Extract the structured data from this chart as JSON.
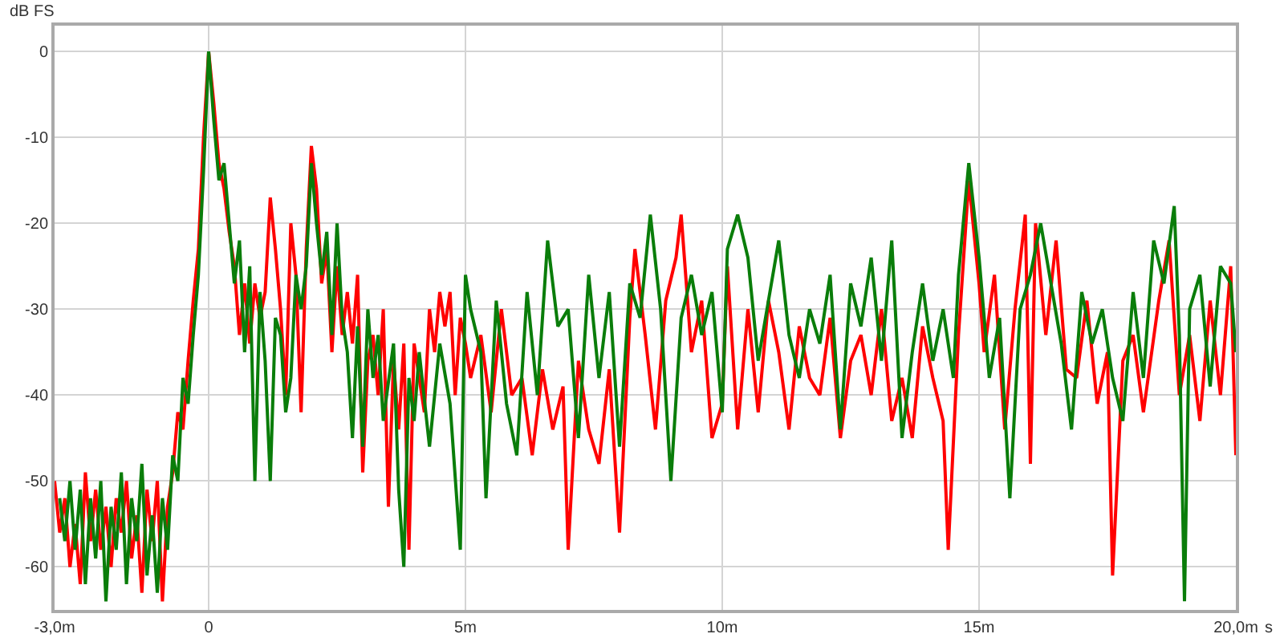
{
  "chart_data": {
    "type": "line",
    "xlabel": "s",
    "ylabel": "dB FS",
    "xlim": [
      -3,
      20
    ],
    "ylim": [
      -65,
      3
    ],
    "xticks": [
      {
        "value": -3,
        "label": "-3,0m"
      },
      0,
      {
        "value": 5,
        "label": "5m"
      },
      {
        "value": 10,
        "label": "10m"
      },
      {
        "value": 15,
        "label": "15m"
      },
      {
        "value": 20,
        "label": "20,0m"
      }
    ],
    "yticks": [
      -60,
      -50,
      -40,
      -30,
      -20,
      -10,
      0
    ],
    "grid": true,
    "marker": "none",
    "line_style": "solid",
    "series": [
      {
        "color": "#ff0000",
        "x": [
          -3.0,
          -2.9,
          -2.8,
          -2.7,
          -2.6,
          -2.5,
          -2.4,
          -2.3,
          -2.2,
          -2.1,
          -2.0,
          -1.9,
          -1.8,
          -1.7,
          -1.6,
          -1.5,
          -1.4,
          -1.3,
          -1.2,
          -1.1,
          -1.0,
          -0.9,
          -0.8,
          -0.7,
          -0.6,
          -0.5,
          -0.4,
          -0.3,
          -0.2,
          -0.1,
          0.0,
          0.1,
          0.2,
          0.3,
          0.4,
          0.5,
          0.6,
          0.7,
          0.8,
          0.9,
          1.0,
          1.1,
          1.2,
          1.3,
          1.4,
          1.5,
          1.6,
          1.7,
          1.8,
          1.9,
          2.0,
          2.1,
          2.2,
          2.3,
          2.4,
          2.5,
          2.6,
          2.7,
          2.8,
          2.9,
          3.0,
          3.1,
          3.2,
          3.3,
          3.4,
          3.5,
          3.6,
          3.7,
          3.8,
          3.9,
          4.0,
          4.2,
          4.3,
          4.4,
          4.5,
          4.6,
          4.7,
          4.8,
          4.9,
          5.0,
          5.1,
          5.3,
          5.5,
          5.7,
          5.9,
          6.1,
          6.3,
          6.5,
          6.7,
          6.9,
          7.0,
          7.2,
          7.4,
          7.6,
          7.8,
          8.0,
          8.2,
          8.3,
          8.5,
          8.7,
          8.9,
          9.1,
          9.2,
          9.4,
          9.6,
          9.8,
          10.0,
          10.1,
          10.3,
          10.5,
          10.7,
          10.9,
          11.1,
          11.3,
          11.5,
          11.7,
          11.9,
          12.1,
          12.3,
          12.5,
          12.7,
          12.9,
          13.1,
          13.3,
          13.5,
          13.7,
          13.9,
          14.1,
          14.3,
          14.4,
          14.6,
          14.8,
          15.0,
          15.1,
          15.3,
          15.5,
          15.7,
          15.9,
          16.0,
          16.1,
          16.3,
          16.5,
          16.7,
          16.9,
          17.1,
          17.3,
          17.5,
          17.6,
          17.8,
          18.0,
          18.2,
          18.5,
          18.7,
          18.9,
          19.1,
          19.3,
          19.5,
          19.7,
          19.9,
          20.0
        ],
        "values": [
          -50,
          -56,
          -52,
          -60,
          -55,
          -62,
          -49,
          -57,
          -51,
          -58,
          -53,
          -60,
          -52,
          -56,
          -50,
          -59,
          -54,
          -63,
          -51,
          -57,
          -50,
          -64,
          -53,
          -49,
          -42,
          -44,
          -36,
          -29,
          -23,
          -10,
          0,
          -6,
          -13,
          -16,
          -21,
          -25,
          -33,
          -27,
          -34,
          -27,
          -31,
          -28,
          -17,
          -23,
          -30,
          -40,
          -20,
          -26,
          -42,
          -23,
          -11,
          -16,
          -27,
          -23,
          -35,
          -25,
          -33,
          -28,
          -34,
          -26,
          -49,
          -36,
          -33,
          -40,
          -30,
          -53,
          -36,
          -44,
          -34,
          -58,
          -34,
          -42,
          -30,
          -35,
          -28,
          -32,
          -28,
          -40,
          -31,
          -34,
          -38,
          -33,
          -42,
          -30,
          -40,
          -38,
          -47,
          -37,
          -44,
          -39,
          -58,
          -36,
          -44,
          -48,
          -37,
          -56,
          -31,
          -23,
          -33,
          -44,
          -29,
          -24,
          -19,
          -35,
          -29,
          -45,
          -41,
          -25,
          -44,
          -30,
          -42,
          -29,
          -35,
          -44,
          -32,
          -38,
          -40,
          -31,
          -45,
          -36,
          -33,
          -40,
          -30,
          -43,
          -38,
          -45,
          -32,
          -38,
          -43,
          -58,
          -33,
          -15,
          -27,
          -35,
          -26,
          -44,
          -30,
          -19,
          -48,
          -20,
          -33,
          -22,
          -37,
          -38,
          -29,
          -41,
          -35,
          -61,
          -36,
          -33,
          -42,
          -29,
          -22,
          -40,
          -33,
          -43,
          -29,
          -40,
          -25,
          -47
        ]
      },
      {
        "color": "#0a7d0a",
        "x": [
          -2.9,
          -2.8,
          -2.7,
          -2.6,
          -2.5,
          -2.4,
          -2.3,
          -2.2,
          -2.1,
          -2.0,
          -1.9,
          -1.8,
          -1.7,
          -1.6,
          -1.5,
          -1.4,
          -1.3,
          -1.2,
          -1.1,
          -1.0,
          -0.9,
          -0.8,
          -0.7,
          -0.6,
          -0.5,
          -0.4,
          -0.3,
          -0.2,
          -0.1,
          0.0,
          0.1,
          0.2,
          0.3,
          0.4,
          0.5,
          0.6,
          0.7,
          0.8,
          0.9,
          1.0,
          1.1,
          1.2,
          1.3,
          1.4,
          1.5,
          1.6,
          1.7,
          1.8,
          1.9,
          2.0,
          2.1,
          2.2,
          2.3,
          2.4,
          2.5,
          2.6,
          2.7,
          2.8,
          2.9,
          3.0,
          3.1,
          3.2,
          3.3,
          3.4,
          3.6,
          3.7,
          3.8,
          3.9,
          4.0,
          4.1,
          4.3,
          4.5,
          4.7,
          4.9,
          5.0,
          5.1,
          5.3,
          5.4,
          5.6,
          5.8,
          6.0,
          6.2,
          6.4,
          6.6,
          6.8,
          7.0,
          7.2,
          7.4,
          7.6,
          7.8,
          8.0,
          8.2,
          8.4,
          8.6,
          8.8,
          9.0,
          9.2,
          9.4,
          9.6,
          9.8,
          10.0,
          10.1,
          10.3,
          10.5,
          10.7,
          10.9,
          11.1,
          11.3,
          11.5,
          11.7,
          11.9,
          12.1,
          12.3,
          12.5,
          12.7,
          12.9,
          13.1,
          13.3,
          13.5,
          13.7,
          13.9,
          14.1,
          14.3,
          14.5,
          14.6,
          14.8,
          15.0,
          15.2,
          15.4,
          15.6,
          15.8,
          16.0,
          16.2,
          16.4,
          16.6,
          16.8,
          17.0,
          17.2,
          17.4,
          17.6,
          17.8,
          18.0,
          18.2,
          18.4,
          18.6,
          18.8,
          18.9,
          19.0,
          19.1,
          19.3,
          19.5,
          19.7,
          19.9,
          20.0
        ],
        "values": [
          -52,
          -57,
          -50,
          -58,
          -51,
          -62,
          -52,
          -59,
          -50,
          -64,
          -53,
          -58,
          -49,
          -62,
          -52,
          -57,
          -48,
          -61,
          -54,
          -63,
          -52,
          -58,
          -47,
          -50,
          -38,
          -41,
          -33,
          -26,
          -14,
          0,
          -8,
          -15,
          -13,
          -20,
          -27,
          -22,
          -35,
          -25,
          -50,
          -28,
          -36,
          -50,
          -31,
          -33,
          -42,
          -38,
          -26,
          -30,
          -25,
          -13,
          -20,
          -26,
          -21,
          -33,
          -20,
          -31,
          -35,
          -45,
          -32,
          -46,
          -30,
          -38,
          -33,
          -43,
          -34,
          -51,
          -60,
          -38,
          -43,
          -35,
          -46,
          -34,
          -41,
          -58,
          -26,
          -30,
          -35,
          -52,
          -29,
          -41,
          -47,
          -28,
          -40,
          -22,
          -32,
          -30,
          -45,
          -26,
          -38,
          -28,
          -46,
          -27,
          -31,
          -19,
          -30,
          -50,
          -31,
          -26,
          -33,
          -28,
          -42,
          -23,
          -19,
          -24,
          -36,
          -29,
          -22,
          -33,
          -38,
          -30,
          -34,
          -26,
          -44,
          -27,
          -32,
          -24,
          -36,
          -22,
          -45,
          -35,
          -27,
          -36,
          -30,
          -38,
          -26,
          -13,
          -24,
          -38,
          -31,
          -52,
          -30,
          -26,
          -20,
          -27,
          -34,
          -44,
          -28,
          -34,
          -30,
          -38,
          -43,
          -28,
          -38,
          -22,
          -27,
          -18,
          -33,
          -64,
          -30,
          -26,
          -39,
          -25,
          -27,
          -35
        ]
      }
    ]
  }
}
